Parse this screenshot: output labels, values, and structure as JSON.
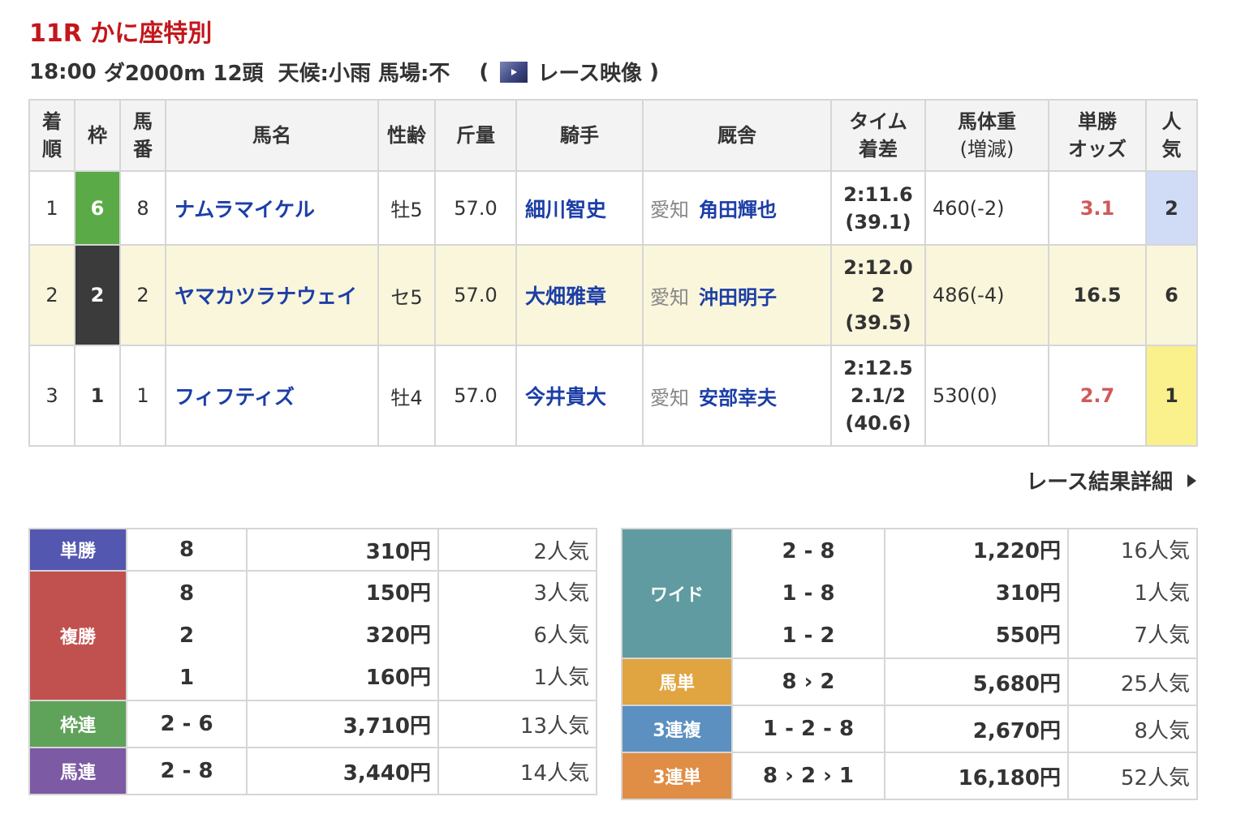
{
  "race": {
    "title": "11R かに座特別",
    "time": "18:00",
    "course": "ダ2000m",
    "runners": "12頭",
    "weather": "天候:小雨",
    "track": "馬場:不",
    "open_paren": "(",
    "video_label": "レース映像",
    "close_paren": ")"
  },
  "result_table": {
    "headers": {
      "rank": [
        "着",
        "順"
      ],
      "frame": "枠",
      "num": [
        "馬",
        "番"
      ],
      "horse": "馬名",
      "sex_age": "性齢",
      "weight_carried": "斤量",
      "jockey": "騎手",
      "stable": "厩舎",
      "time": [
        "タイム",
        "着差"
      ],
      "body_weight": [
        "馬体重",
        "(増減)"
      ],
      "odds": [
        "単勝",
        "オッズ"
      ],
      "popularity": [
        "人",
        "気"
      ]
    },
    "rows": [
      {
        "rank": "1",
        "frame": "6",
        "num": "8",
        "horse": "ナムラマイケル",
        "sex_age": "牡5",
        "kinryo": "57.0",
        "jockey": "細川智史",
        "area": "愛知",
        "trainer": "角田輝也",
        "time": "2:11.6",
        "margin": "",
        "last3f": "(39.1)",
        "body_weight": "460(-2)",
        "odds": "3.1",
        "popularity": "2"
      },
      {
        "rank": "2",
        "frame": "2",
        "num": "2",
        "horse": "ヤマカツラナウェイ",
        "sex_age": "セ5",
        "kinryo": "57.0",
        "jockey": "大畑雅章",
        "area": "愛知",
        "trainer": "沖田明子",
        "time": "2:12.0",
        "margin": "2",
        "last3f": "(39.5)",
        "body_weight": "486(-4)",
        "odds": "16.5",
        "popularity": "6"
      },
      {
        "rank": "3",
        "frame": "1",
        "num": "1",
        "horse": "フィフティズ",
        "sex_age": "牡4",
        "kinryo": "57.0",
        "jockey": "今井貴大",
        "area": "愛知",
        "trainer": "安部幸夫",
        "time": "2:12.5",
        "margin": "2.1/2",
        "last3f": "(40.6)",
        "body_weight": "530(0)",
        "odds": "2.7",
        "popularity": "1"
      }
    ]
  },
  "detail_link": "レース結果詳細",
  "payouts_left": {
    "tansho": {
      "label": "単勝",
      "combo": "8",
      "yen": "310円",
      "ninki": "2人気"
    },
    "fukusho": {
      "label": "複勝",
      "items": [
        {
          "combo": "8",
          "yen": "150円",
          "ninki": "3人気"
        },
        {
          "combo": "2",
          "yen": "320円",
          "ninki": "6人気"
        },
        {
          "combo": "1",
          "yen": "160円",
          "ninki": "1人気"
        }
      ]
    },
    "wakuren": {
      "label": "枠連",
      "combo": "2 - 6",
      "yen": "3,710円",
      "ninki": "13人気"
    },
    "umaren": {
      "label": "馬連",
      "combo": "2 - 8",
      "yen": "3,440円",
      "ninki": "14人気"
    }
  },
  "payouts_right": {
    "wide": {
      "label": "ワイド",
      "items": [
        {
          "combo": "2 - 8",
          "yen": "1,220円",
          "ninki": "16人気"
        },
        {
          "combo": "1 - 8",
          "yen": "310円",
          "ninki": "1人気"
        },
        {
          "combo": "1 - 2",
          "yen": "550円",
          "ninki": "7人気"
        }
      ]
    },
    "umatan": {
      "label": "馬単",
      "combo": "8 › 2",
      "yen": "5,680円",
      "ninki": "25人気"
    },
    "sanrenpuku": {
      "label": "3連複",
      "combo": "1 - 2 - 8",
      "yen": "2,670円",
      "ninki": "8人気"
    },
    "sanrentan": {
      "label": "3連単",
      "combo": "8 › 2 › 1",
      "yen": "16,180円",
      "ninki": "52人気"
    }
  },
  "colors": {
    "title_red": "#c4161c",
    "link_blue": "#1c3ea6",
    "frame6": "#5aab47",
    "frame2": "#3b3b3b",
    "pop1": "#faf08c",
    "pop2": "#d0dcf6",
    "alt_row": "#faf6dc"
  },
  "icons": {
    "video": "video-thumbnail-icon",
    "detail_arrow": "triangle-right-icon"
  }
}
